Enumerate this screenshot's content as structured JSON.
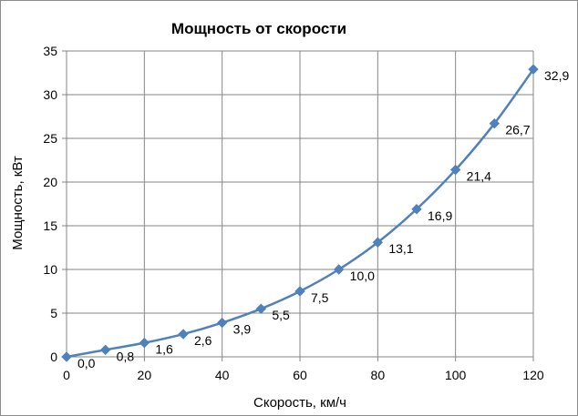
{
  "chart_data": {
    "type": "line",
    "title": "Мощность  от скорости",
    "xlabel": "Скорость, км/ч",
    "ylabel": "Мощность, кВт",
    "xlim": [
      0,
      120
    ],
    "ylim": [
      0,
      35
    ],
    "xticks": [
      0,
      20,
      40,
      60,
      80,
      100,
      120
    ],
    "yticks": [
      0,
      5,
      10,
      15,
      20,
      25,
      30,
      35
    ],
    "grid": true,
    "legend": "none",
    "series": [
      {
        "x": [
          0,
          10,
          20,
          30,
          40,
          50,
          60,
          70,
          80,
          90,
          100,
          110,
          120
        ],
        "y": [
          0.0,
          0.8,
          1.6,
          2.6,
          3.9,
          5.5,
          7.5,
          10.0,
          13.1,
          16.9,
          21.4,
          26.7,
          32.9
        ],
        "labels": [
          "0,0",
          "0,8",
          "1,6",
          "2,6",
          "3,9",
          "5,5",
          "7,5",
          "10,0",
          "13,1",
          "16,9",
          "21,4",
          "26,7",
          "32,9"
        ],
        "color": "#4f81bd",
        "marker": "diamond",
        "smooth": true
      }
    ]
  }
}
